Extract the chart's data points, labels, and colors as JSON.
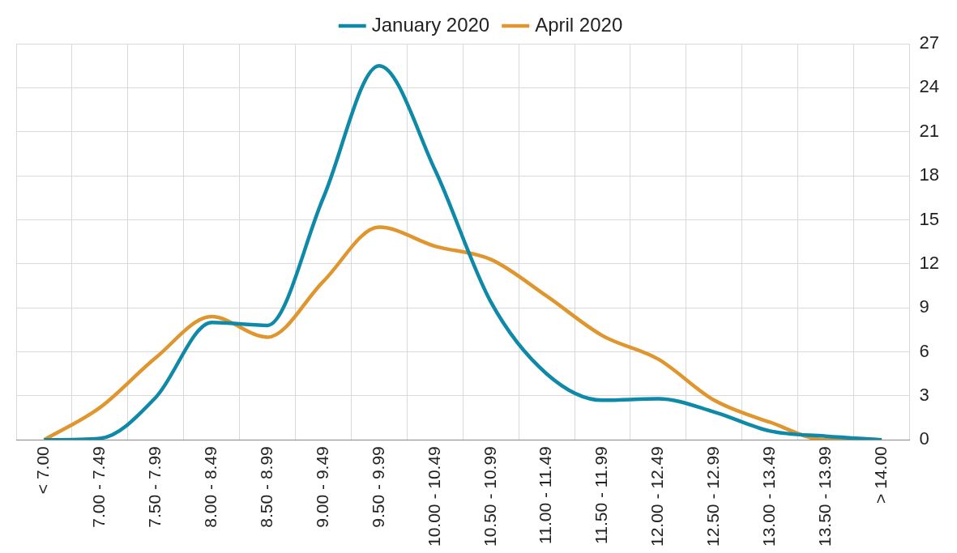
{
  "chart_data": {
    "type": "line",
    "categories": [
      "< 7.00",
      "7.00 - 7.49",
      "7.50 - 7.99",
      "8.00 - 8.49",
      "8.50 - 8.99",
      "9.00 - 9.49",
      "9.50 - 9.99",
      "10.00 - 10.49",
      "10.50 - 10.99",
      "11.00 - 11.49",
      "11.50 - 11.99",
      "12.00 - 12.49",
      "12.50 - 12.99",
      "13.00 - 13.49",
      "13.50 - 13.99",
      "> 14.00"
    ],
    "series": [
      {
        "name": "January 2020",
        "color": "#0e8aa8",
        "values": [
          0,
          0.1,
          2.9,
          8.0,
          7.8,
          16.5,
          25.5,
          18.4,
          9.4,
          4.5,
          2.7,
          2.8,
          1.9,
          0.6,
          0.25,
          0
        ]
      },
      {
        "name": "April 2020",
        "color": "#e0962e",
        "values": [
          0,
          2.2,
          5.6,
          8.4,
          7.0,
          10.8,
          14.5,
          13.2,
          12.3,
          9.8,
          7.1,
          5.5,
          2.7,
          1.2,
          0,
          0
        ]
      }
    ],
    "ylim": [
      0,
      27
    ],
    "yticks": [
      0,
      3,
      6,
      9,
      12,
      15,
      18,
      21,
      24,
      27
    ],
    "grid": true,
    "legend": "top",
    "marker": "none",
    "line_style": "solid"
  }
}
